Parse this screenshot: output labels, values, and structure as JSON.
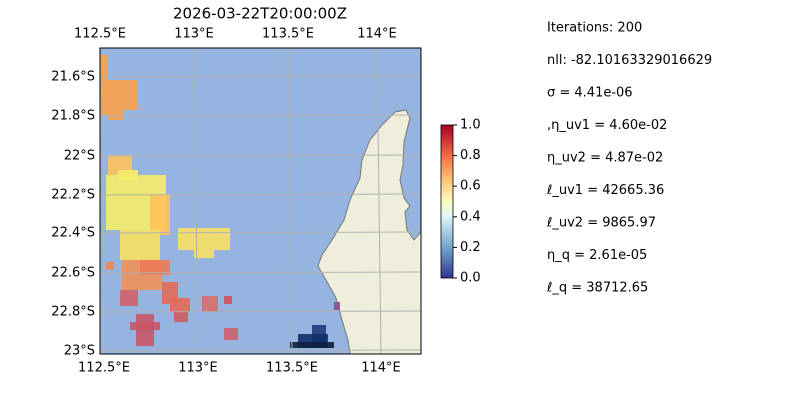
{
  "title": "2026-03-22T20:00:00Z",
  "map": {
    "lon_labels": [
      "112.5°E",
      "113°E",
      "113.5°E",
      "114°E"
    ],
    "lat_labels": [
      "21.6°S",
      "21.8°S",
      "22°S",
      "22.2°S",
      "22.4°S",
      "22.6°S",
      "22.8°S",
      "23°S"
    ]
  },
  "colorbar": {
    "ticks": [
      "0.0",
      "0.2",
      "0.4",
      "0.6",
      "0.8",
      "1.0"
    ]
  },
  "info": [
    "Iterations: 200",
    "nll: -82.10163329016629",
    "σ = 4.41e-06",
    ",η_uv1 = 4.60e-02",
    "η_uv2 = 4.87e-02",
    "ℓ_uv1 = 42665.36",
    "ℓ_uv2 = 9865.97",
    "η_q = 2.61e-05",
    "ℓ_q = 38712.65"
  ]
}
